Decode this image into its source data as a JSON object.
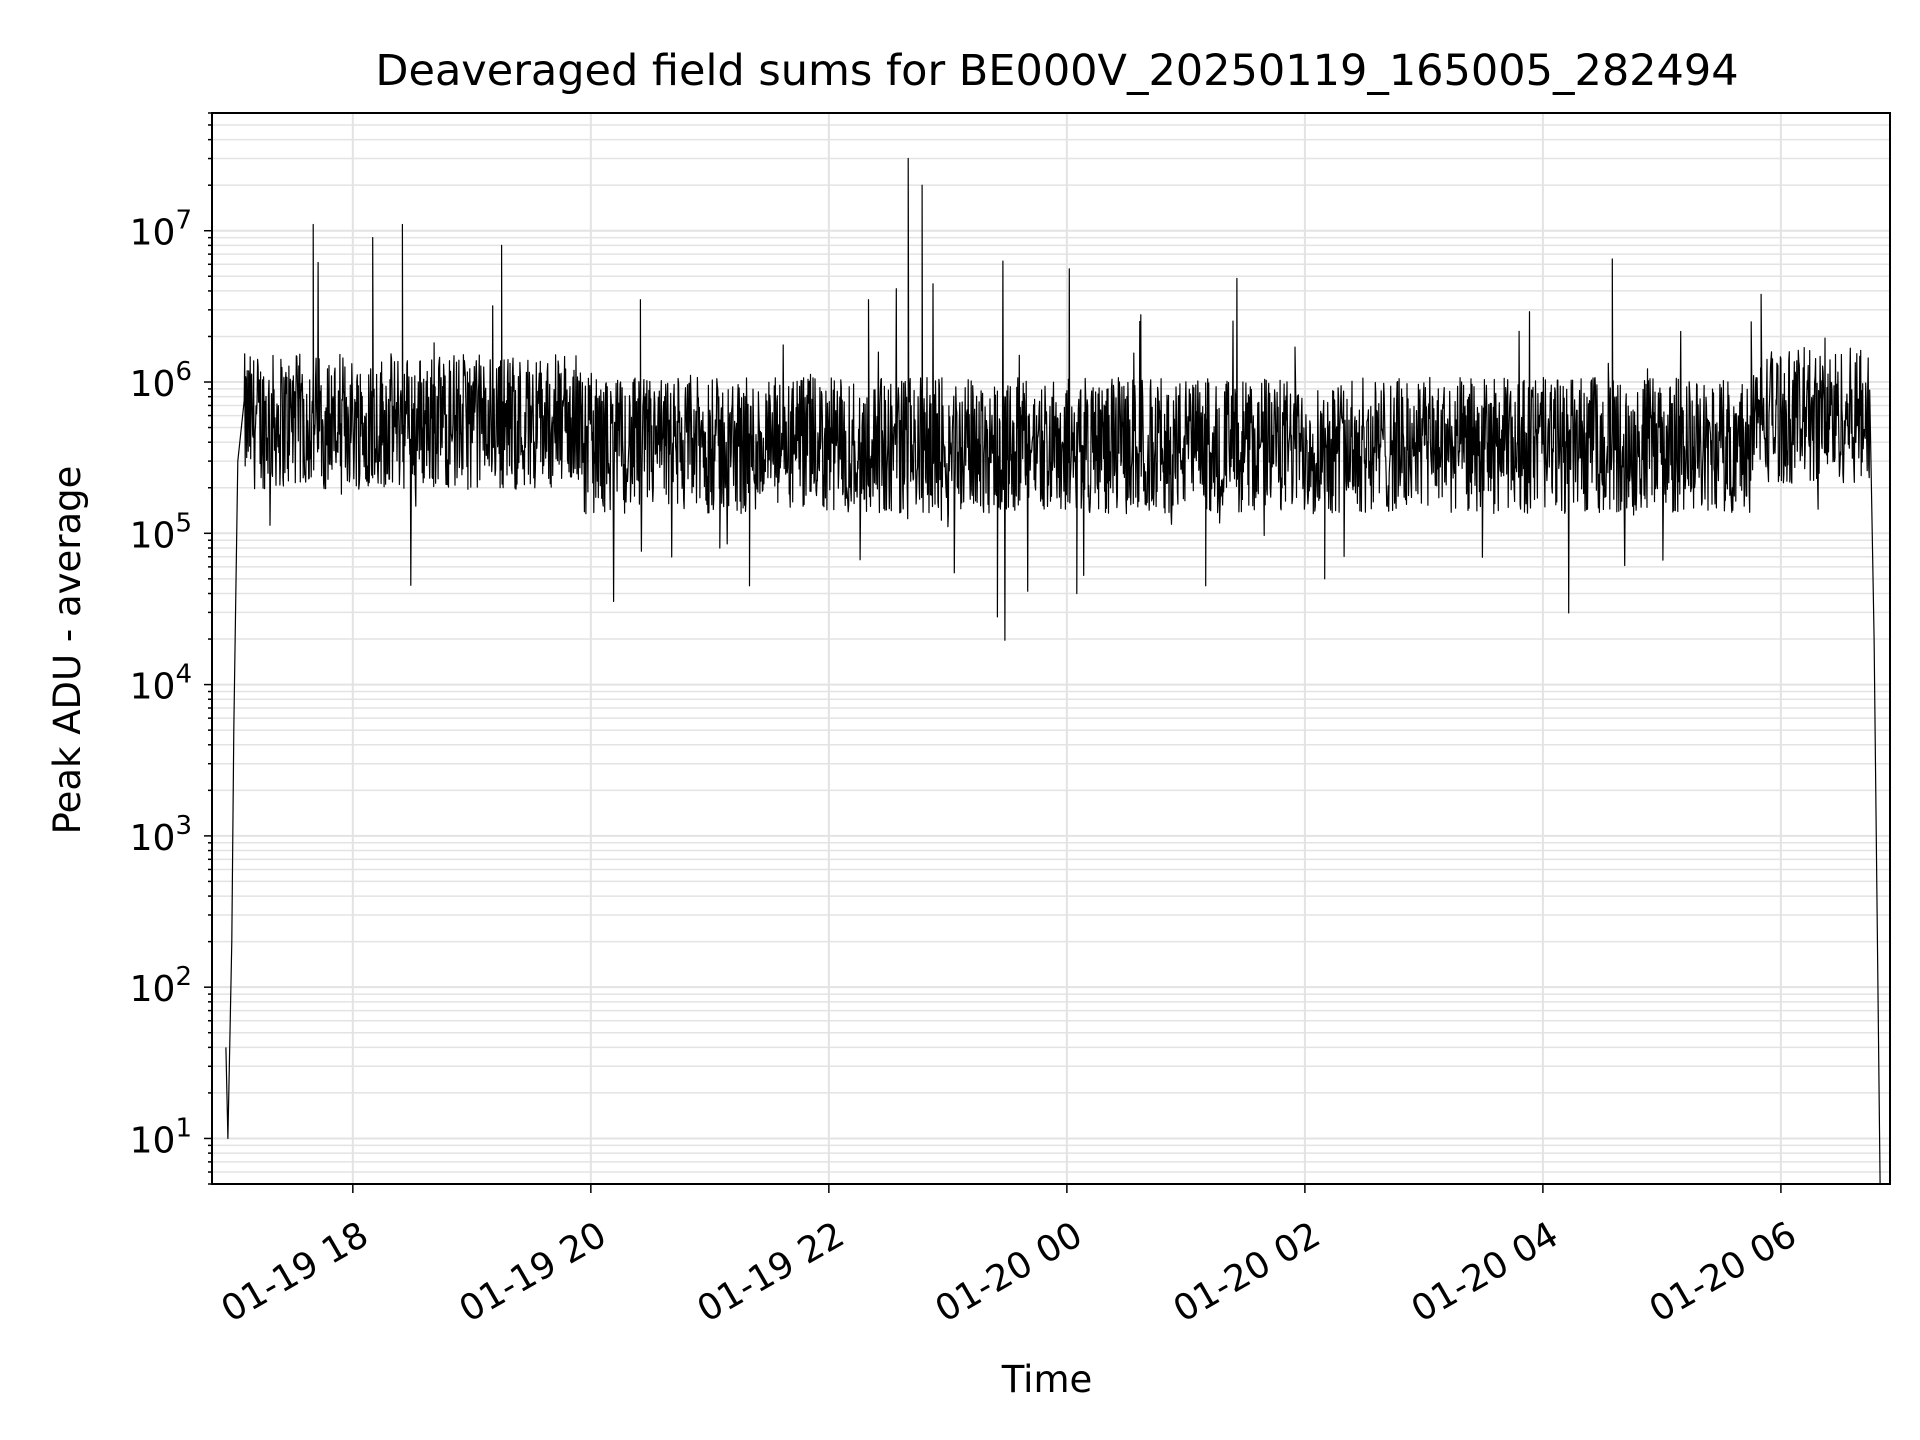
{
  "chart_data": {
    "type": "line",
    "title": "Deaveraged field sums for BE000V_20250119_165005_282494",
    "xlabel": "Time",
    "ylabel": "Peak ADU - average",
    "yscale": "log",
    "ylim": [
      5,
      60000000
    ],
    "xlim": [
      "2025-01-19 16:49",
      "2025-01-20 06:55"
    ],
    "grid": true,
    "x_tick_labels": [
      "01-19 18",
      "01-19 20",
      "01-19 22",
      "01-20 00",
      "01-20 02",
      "01-20 04",
      "01-20 06"
    ],
    "y_tick_labels": [
      "10^1",
      "10^2",
      "10^3",
      "10^4",
      "10^5",
      "10^6",
      "10^7"
    ],
    "series": [
      {
        "color": "#000000",
        "note_points": "x as time of day spanning 2025-01-19 16:56 to 2025-01-20 06:51; y in ADU",
        "x": [
          "2025-01-19 16:56",
          "2025-01-19 16:57",
          "2025-01-19 16:59",
          "2025-01-19 17:00",
          "2025-01-19 17:02",
          "2025-01-19 17:05",
          "2025-01-19 17:10",
          "2025-01-19 17:20",
          "2025-01-19 17:30",
          "2025-01-19 17:35",
          "2025-01-19 17:40",
          "2025-01-19 17:50",
          "2025-01-19 18:10",
          "2025-01-19 18:15",
          "2025-01-19 18:25",
          "2025-01-19 18:35",
          "2025-01-19 19:15",
          "2025-01-19 19:40",
          "2025-01-19 20:25",
          "2025-01-19 20:35",
          "2025-01-19 21:05",
          "2025-01-19 21:20",
          "2025-01-19 22:20",
          "2025-01-19 22:40",
          "2025-01-19 22:43",
          "2025-01-19 22:47",
          "2025-01-19 23:25",
          "2025-01-20 00:05",
          "2025-01-20 01:10",
          "2025-01-20 01:55",
          "2025-01-20 02:10",
          "2025-01-20 03:20",
          "2025-01-20 04:35",
          "2025-01-20 04:55",
          "2025-01-20 05:45",
          "2025-01-20 05:50",
          "2025-01-20 06:05",
          "2025-01-20 06:25",
          "2025-01-20 06:40",
          "2025-01-20 06:47",
          "2025-01-20 06:50"
        ],
        "y": [
          40,
          10,
          200,
          5000,
          300000,
          700000,
          900000,
          500000,
          1100000,
          600000,
          11000000,
          800000,
          9000000,
          400000,
          11000000,
          500000,
          8000000,
          450000,
          3500000,
          350000,
          80000,
          45000,
          3500000,
          30000000,
          400000,
          20000000,
          28000,
          40000,
          45000,
          1700000,
          50000,
          350000,
          6500000,
          300000,
          2500000,
          3800000,
          400000,
          1000000,
          600000,
          20000,
          5
        ]
      }
    ]
  }
}
